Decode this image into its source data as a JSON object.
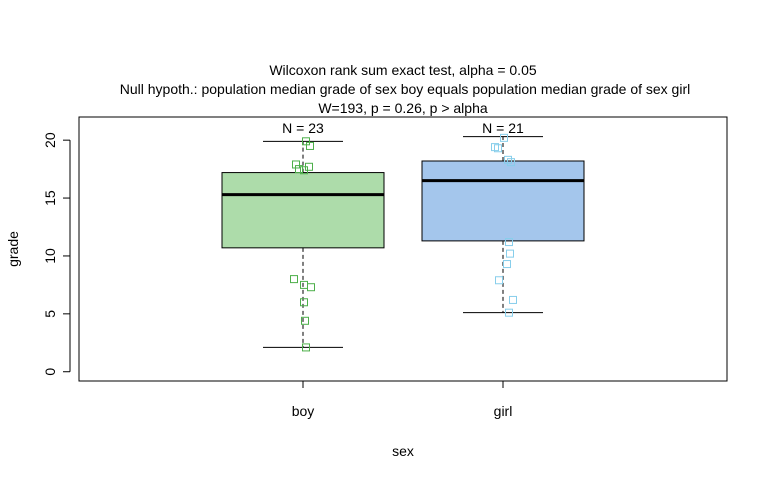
{
  "chart_data": {
    "type": "boxplot",
    "title_lines": [
      "Wilcoxon rank sum exact test, alpha = 0.05",
      "Null hypoth.: population median grade of sex boy equals population median grade of sex girl",
      "W=193, p = 0.26, p > alpha"
    ],
    "xlabel": "sex",
    "ylabel": "grade",
    "ylim": [
      -0.8,
      22
    ],
    "y_ticks": [
      0,
      5,
      10,
      15,
      20
    ],
    "y_tick_labels": [
      "0",
      "5",
      "10",
      "15",
      "20"
    ],
    "groups": [
      {
        "name": "boy",
        "n_label": "N = 23",
        "box_color": "#addcaa",
        "point_color": "#4daf4a",
        "whisker_low": 2.1,
        "q1": 10.7,
        "median": 15.3,
        "q3": 17.2,
        "whisker_high": 19.9,
        "points": [
          {
            "j": 0.03,
            "y": 19.9
          },
          {
            "j": 0.07,
            "y": 19.5
          },
          {
            "j": -0.07,
            "y": 17.9
          },
          {
            "j": -0.04,
            "y": 17.5
          },
          {
            "j": 0.01,
            "y": 17.4
          },
          {
            "j": 0.06,
            "y": 17.7
          },
          {
            "j": -0.09,
            "y": 8.0
          },
          {
            "j": 0.01,
            "y": 7.5
          },
          {
            "j": 0.08,
            "y": 7.3
          },
          {
            "j": 0.01,
            "y": 6.0
          },
          {
            "j": 0.02,
            "y": 4.4
          },
          {
            "j": 0.03,
            "y": 2.1
          }
        ]
      },
      {
        "name": "girl",
        "n_label": "N = 21",
        "box_color": "#a4c6ec",
        "point_color": "#87ceeb",
        "whisker_low": 5.1,
        "q1": 11.3,
        "median": 16.5,
        "q3": 18.2,
        "whisker_high": 20.3,
        "points": [
          {
            "j": 0.01,
            "y": 20.2
          },
          {
            "j": -0.08,
            "y": 19.4
          },
          {
            "j": -0.05,
            "y": 19.3
          },
          {
            "j": 0.05,
            "y": 18.3
          },
          {
            "j": 0.08,
            "y": 18.1
          },
          {
            "j": 0.06,
            "y": 11.2
          },
          {
            "j": 0.07,
            "y": 10.2
          },
          {
            "j": 0.04,
            "y": 9.3
          },
          {
            "j": -0.04,
            "y": 7.9
          },
          {
            "j": 0.1,
            "y": 6.2
          },
          {
            "j": 0.06,
            "y": 5.1
          }
        ]
      }
    ],
    "grid": false,
    "legend": "none"
  }
}
